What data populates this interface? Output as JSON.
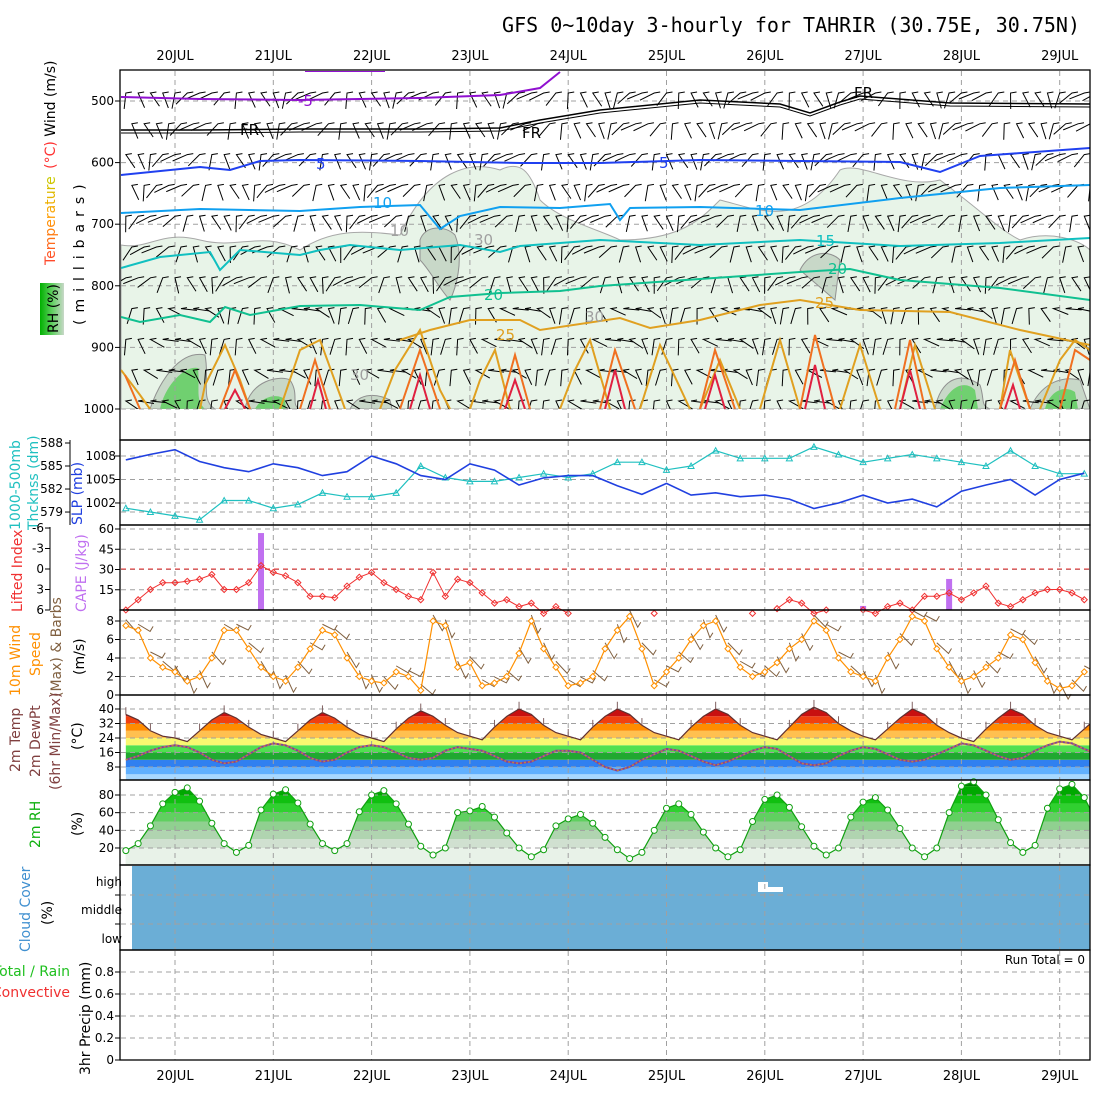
{
  "title": "GFS 0~10day 3-hourly for TAHRIR (30.75E, 30.75N)",
  "dates": [
    "20JUL",
    "21JUL",
    "22JUL",
    "23JUL",
    "24JUL",
    "25JUL",
    "26JUL",
    "27JUL",
    "28JUL",
    "29JUL"
  ],
  "colors": {
    "slp": "#2040e0",
    "thickness": "#20c0c0",
    "li": "#f03030",
    "cape": "#c070f0",
    "wind": "#ff9000",
    "barb": "#806040",
    "temp_line": "#603030",
    "rh": "#10a010",
    "cloud": "#6baed6"
  },
  "upper": {
    "label_main_temp": "Temperature",
    "label_main_unit": "(°C)",
    "label_main_wind": "Wind (m/s)",
    "label_axis": "(millibars)",
    "label_rh": "RH (%)",
    "pressure_ticks": [
      500,
      600,
      700,
      800,
      900,
      1000
    ],
    "contour_labels": [
      "-5",
      "FR",
      "FR",
      "FR",
      "5",
      "5",
      "10",
      "10",
      "15",
      "20",
      "20",
      "25",
      "25",
      "30",
      "30",
      "30",
      "10"
    ]
  },
  "slp_panel": {
    "label_thick_1": "1000-500mb",
    "label_thick_2": "Thcknss (dm)",
    "label_slp": "SLP (mb)",
    "thick_ticks": [
      588,
      585,
      582,
      579
    ],
    "slp_ticks": [
      1008,
      1005,
      1002
    ]
  },
  "cape_panel": {
    "label_li": "Lifted Index",
    "label_cape": "CAPE (J/kg)",
    "li_ticks": [
      "-6",
      "-3",
      "0",
      "3",
      "6"
    ],
    "cape_ticks": [
      60,
      45,
      30,
      15
    ]
  },
  "wind_panel": {
    "label_1": "10m Wind",
    "label_2": "Speed",
    "label_3": "(Max) & Barbs",
    "label_unit": "(m/s)",
    "ticks": [
      8,
      6,
      4,
      2,
      0
    ]
  },
  "temp_panel": {
    "label_1": "2m Temp",
    "label_2": "2m DewPt",
    "label_3": "(6hr Min/Max)",
    "label_unit": "(°C)",
    "ticks": [
      40,
      32,
      24,
      16,
      8
    ]
  },
  "rh_panel": {
    "label_1": "2m RH",
    "label_unit": "(%)",
    "ticks": [
      80,
      60,
      40,
      20
    ]
  },
  "cloud_panel": {
    "label_1": "Cloud Cover",
    "label_unit": "(%)",
    "levels": [
      "high",
      "middle",
      "low"
    ]
  },
  "precip_panel": {
    "label_total": "Total / Rain",
    "label_conv": "Convective",
    "label_axis": "3hr Precip (mm)",
    "run_total": "Run Total = 0",
    "ticks": [
      "0.8",
      "0.6",
      "0.4",
      "0.2",
      "0"
    ]
  },
  "chart_data": {
    "type": "line",
    "time_start": "19JUL 12Z",
    "interval_hours": 3,
    "slp_mb_6hourly": [
      1007.5,
      1008.2,
      1008.8,
      1007.3,
      1006.5,
      1006,
      1007,
      1006.5,
      1005.5,
      1006,
      1008,
      1007,
      1005.5,
      1005,
      1007,
      1006.2,
      1004.3,
      1005.2,
      1005.5,
      1005.5,
      1004.2,
      1003.1,
      1004.5,
      1003,
      1003.3,
      1002.8,
      1003,
      1002.5,
      1001.3,
      1002,
      1003,
      1002,
      1002.5,
      1001.5,
      1003.5,
      1004.3,
      1005,
      1003,
      1005,
      1005.8
    ],
    "thickness_dm_6hourly": [
      579.5,
      579,
      578.5,
      578,
      580.5,
      580.5,
      579.5,
      580,
      581.5,
      581,
      581,
      581.5,
      585,
      583.5,
      583,
      583,
      583.5,
      584,
      583.5,
      584,
      585.5,
      585.5,
      584.5,
      585,
      587,
      586,
      586,
      586,
      587.5,
      586.5,
      585.5,
      586,
      586.5,
      586,
      585.5,
      585,
      587,
      585,
      584,
      584
    ],
    "lifted_index": [
      6,
      4.5,
      3,
      2,
      2,
      1.8,
      1.5,
      0.8,
      3,
      3,
      2,
      -0.5,
      0.5,
      1,
      2,
      4,
      4,
      4.2,
      2.5,
      1.2,
      0.5,
      2,
      3,
      4,
      4.5,
      0.5,
      4,
      1.5,
      2,
      3.5,
      5,
      4.5,
      5.5,
      5,
      6.5,
      5.5,
      6.5,
      null,
      null,
      null,
      null,
      null,
      null,
      6.5,
      null,
      null,
      null,
      null,
      null,
      null,
      null,
      6.5,
      null,
      5.8,
      4.5,
      5,
      6.5,
      6,
      null,
      null,
      6,
      6.5,
      5.5,
      5,
      6,
      4,
      4,
      3.5,
      4.5,
      3.5,
      2.5,
      5,
      5.5,
      4.5,
      3.5,
      3,
      3,
      3.5,
      4.5
    ],
    "cape_bars": [
      {
        "time": "20JUL 21Z",
        "value": 57
      },
      {
        "time": "27JUL 00Z",
        "value": 3
      },
      {
        "time": "27JUL 21Z",
        "value": 23
      }
    ],
    "wind_speed_ms": [
      7.5,
      7,
      4,
      3,
      2.5,
      1.5,
      2,
      4,
      7,
      7,
      5,
      3,
      2,
      1.5,
      3,
      5,
      7,
      6.5,
      4,
      2,
      1.5,
      1.3,
      2.5,
      2,
      0.5,
      8,
      7.5,
      3,
      3.5,
      1,
      1.3,
      2,
      4.5,
      8,
      5,
      3,
      1,
      1.3,
      2,
      5,
      7,
      8.5,
      5,
      1,
      2.5,
      4,
      6,
      7.5,
      8,
      5,
      3,
      2,
      2.5,
      3.5,
      5,
      6,
      8,
      7,
      4,
      2.5,
      2,
      1.5,
      4,
      6,
      8.5,
      8,
      5,
      3,
      1.5,
      2,
      3,
      4,
      6.5,
      6,
      3.5,
      1.5,
      0.7,
      1,
      2.5
    ],
    "temp_2m_c": [
      37,
      34,
      28,
      25,
      24,
      22,
      28,
      34,
      38,
      35,
      30,
      26,
      24,
      22,
      28,
      34,
      38,
      35,
      30,
      26,
      24,
      22,
      29,
      35,
      39,
      36,
      31,
      27,
      25,
      23,
      30,
      36,
      40,
      37,
      31,
      27,
      25,
      23,
      30,
      36,
      40,
      37,
      31,
      27,
      25,
      23,
      30,
      36,
      40,
      37,
      31,
      27,
      25,
      23,
      30,
      37,
      41,
      38,
      32,
      28,
      25,
      23,
      29,
      35,
      40,
      37,
      31,
      27,
      24,
      22,
      29,
      35,
      40,
      37,
      31,
      27,
      25,
      23,
      29,
      35
    ],
    "dewpt_2m_c": [
      12,
      14,
      17,
      19,
      20,
      19,
      16,
      12,
      10,
      11,
      15,
      19,
      21,
      20,
      17,
      13,
      11,
      12,
      16,
      19,
      20,
      19,
      16,
      13,
      12,
      13,
      17,
      19,
      18,
      17,
      14,
      11,
      10,
      11,
      14,
      17,
      17,
      16,
      12,
      8,
      6,
      8,
      12,
      15,
      18,
      17,
      14,
      11,
      9,
      11,
      14,
      17,
      19,
      18,
      14,
      10,
      9,
      10,
      14,
      17,
      19,
      18,
      15,
      12,
      11,
      12,
      15,
      18,
      21,
      20,
      17,
      14,
      12,
      13,
      17,
      20,
      22,
      21,
      18,
      15
    ],
    "rh_2m_pct": [
      17,
      25,
      45,
      70,
      83,
      88,
      73,
      48,
      25,
      15,
      23,
      63,
      81,
      86,
      71,
      47,
      25,
      17,
      25,
      61,
      80,
      85,
      70,
      47,
      22,
      12,
      20,
      60,
      62,
      67,
      55,
      37,
      20,
      10,
      18,
      45,
      53,
      58,
      48,
      32,
      18,
      8,
      15,
      40,
      65,
      70,
      58,
      38,
      20,
      10,
      18,
      50,
      75,
      80,
      66,
      44,
      22,
      12,
      20,
      55,
      72,
      77,
      63,
      42,
      20,
      10,
      20,
      60,
      90,
      95,
      80,
      52,
      26,
      15,
      23,
      65,
      87,
      92,
      77,
      50
    ],
    "cloud_cover": "overcast-band shown across all levels (blue fill)",
    "precip_mm": 0
  }
}
